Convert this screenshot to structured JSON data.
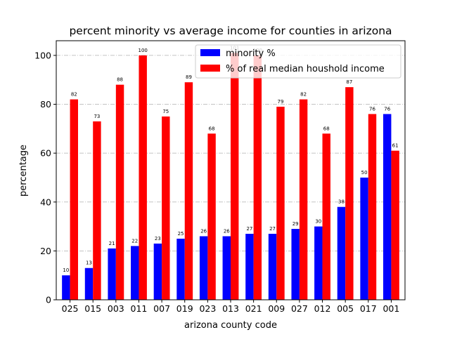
{
  "chart_data": {
    "type": "bar",
    "title": "percent minority vs average income for counties in arizona",
    "xlabel": "arizona county code",
    "ylabel": "percentage",
    "categories": [
      "025",
      "015",
      "003",
      "011",
      "007",
      "019",
      "023",
      "013",
      "021",
      "009",
      "027",
      "012",
      "005",
      "017",
      "001"
    ],
    "series": [
      {
        "name": "minority %",
        "color": "#0000ff",
        "values": [
          10,
          13,
          21,
          22,
          23,
          25,
          26,
          26,
          27,
          27,
          29,
          30,
          38,
          50,
          76
        ]
      },
      {
        "name": "% of real median houshold income",
        "color": "#ff0000",
        "values": [
          82,
          73,
          88,
          100,
          75,
          89,
          68,
          101,
          100,
          79,
          82,
          68,
          87,
          76,
          61
        ]
      }
    ],
    "ylim": [
      0,
      106
    ],
    "yticks": [
      0,
      20,
      40,
      60,
      80,
      100
    ],
    "grid": {
      "axis": "y",
      "style": "dash-dot",
      "color": "#b0b0b0"
    },
    "legend": "top-right"
  }
}
